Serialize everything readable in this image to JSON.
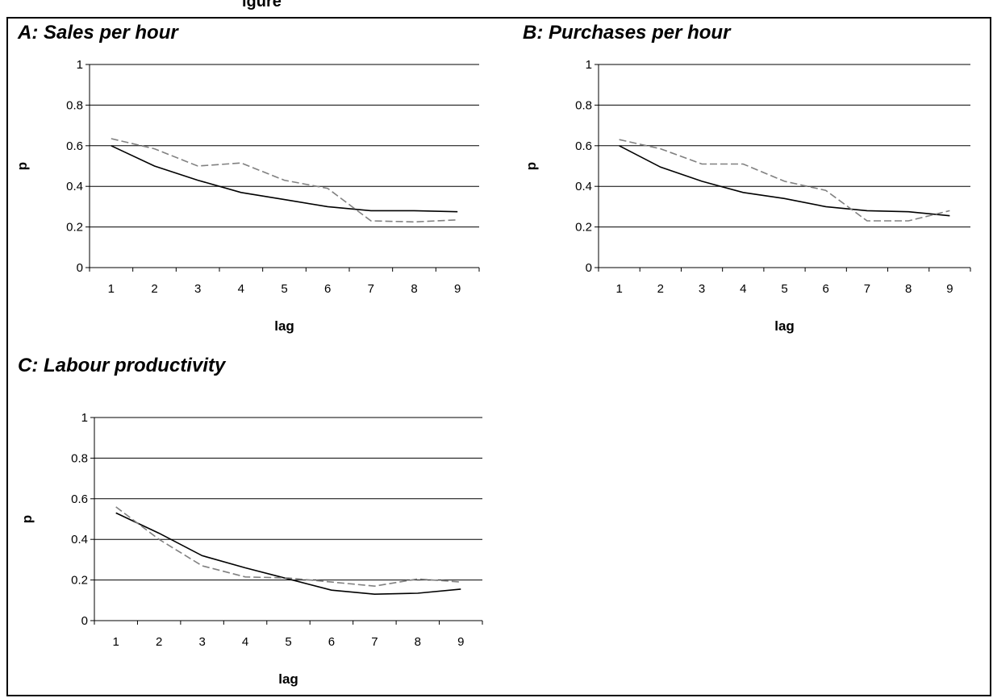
{
  "header": {
    "caption": "igure"
  },
  "panels": [
    {
      "title": "A:  Sales per hour"
    },
    {
      "title": "B:  Purchases per hour"
    },
    {
      "title": "C:  Labour productivity"
    }
  ],
  "chart_data": [
    {
      "type": "line",
      "title": "A:  Sales per hour",
      "xlabel": "lag",
      "ylabel": "p",
      "categories": [
        1,
        2,
        3,
        4,
        5,
        6,
        7,
        8,
        9
      ],
      "ylim": [
        0,
        1
      ],
      "yticks": [
        0,
        0.2,
        0.4,
        0.6,
        0.8,
        1
      ],
      "grid": true,
      "series": [
        {
          "style": "solid",
          "color": "#000000",
          "values": [
            0.6,
            0.5,
            0.43,
            0.37,
            0.335,
            0.3,
            0.28,
            0.28,
            0.275
          ]
        },
        {
          "style": "dashed",
          "color": "#808080",
          "values": [
            0.635,
            0.585,
            0.5,
            0.515,
            0.43,
            0.39,
            0.23,
            0.225,
            0.235
          ]
        }
      ]
    },
    {
      "type": "line",
      "title": "B:  Purchases per hour",
      "xlabel": "lag",
      "ylabel": "p",
      "categories": [
        1,
        2,
        3,
        4,
        5,
        6,
        7,
        8,
        9
      ],
      "ylim": [
        0,
        1
      ],
      "yticks": [
        0,
        0.2,
        0.4,
        0.6,
        0.8,
        1
      ],
      "grid": true,
      "series": [
        {
          "style": "solid",
          "color": "#000000",
          "values": [
            0.6,
            0.495,
            0.425,
            0.37,
            0.34,
            0.3,
            0.28,
            0.275,
            0.255
          ]
        },
        {
          "style": "dashed",
          "color": "#808080",
          "values": [
            0.63,
            0.585,
            0.51,
            0.51,
            0.425,
            0.38,
            0.23,
            0.23,
            0.28
          ]
        }
      ]
    },
    {
      "type": "line",
      "title": "C:  Labour productivity",
      "xlabel": "lag",
      "ylabel": "p",
      "categories": [
        1,
        2,
        3,
        4,
        5,
        6,
        7,
        8,
        9
      ],
      "ylim": [
        0,
        1
      ],
      "yticks": [
        0,
        0.2,
        0.4,
        0.6,
        0.8,
        1
      ],
      "grid": true,
      "series": [
        {
          "style": "solid",
          "color": "#000000",
          "values": [
            0.53,
            0.43,
            0.32,
            0.26,
            0.205,
            0.15,
            0.13,
            0.135,
            0.155
          ]
        },
        {
          "style": "dashed",
          "color": "#808080",
          "values": [
            0.56,
            0.4,
            0.27,
            0.215,
            0.21,
            0.19,
            0.17,
            0.205,
            0.19
          ]
        }
      ]
    }
  ]
}
